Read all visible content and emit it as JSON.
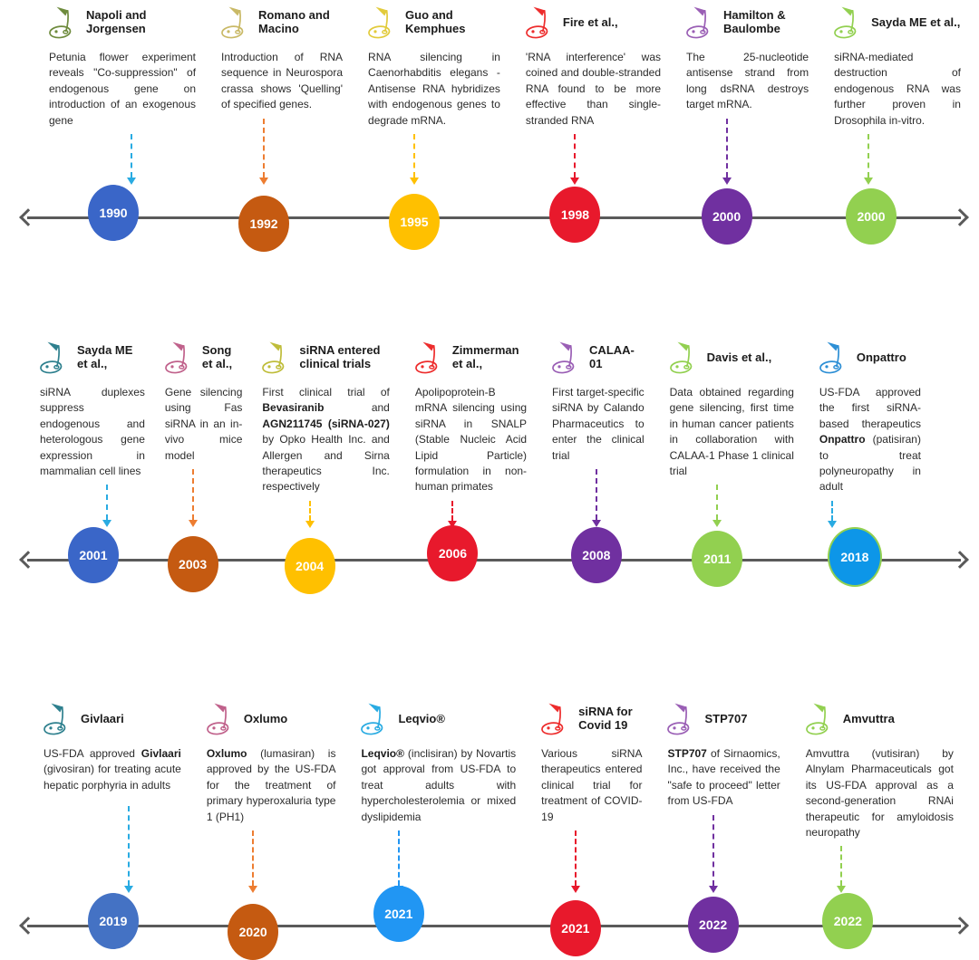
{
  "figure": {
    "title": "Timeline of siRNA / RNAi milestones",
    "axis_color": "#5a5a5a",
    "icon": "golf-flag-icon"
  },
  "rows": [
    {
      "events": [
        {
          "title": "Napoli and Jorgensen",
          "year": "1990",
          "flag_color": "#6E8B3D",
          "arrow_color": "#29ABE2",
          "circle_color": "#3A66C8",
          "desc": [
            "Petunia flower experiment reveals \"Co-suppression\" of endogenous gene on introduction of an exogenous gene"
          ]
        },
        {
          "title": "Romano and Macino",
          "year": "1992",
          "flag_color": "#C9B966",
          "arrow_color": "#ED7D31",
          "circle_color": "#C55A11",
          "desc": [
            "Introduction of RNA sequence in Neurospora crassa shows 'Quelling' of specified genes."
          ]
        },
        {
          "title": "Guo and Kemphues",
          "year": "1995",
          "flag_color": "#E2CB3B",
          "arrow_color": "#FFC000",
          "circle_color": "#FFC000",
          "desc": [
            "RNA silencing in Caenorhabditis elegans - Antisense RNA hybridizes with endogenous genes to degrade mRNA."
          ]
        },
        {
          "title": "Fire et al.,",
          "year": "1998",
          "flag_color": "#ED2C2C",
          "arrow_color": "#E8192C",
          "circle_color": "#E8192C",
          "desc": [
            "'RNA interference' was coined and double-stranded RNA found to be more effective than single-stranded RNA"
          ]
        },
        {
          "title": "Hamilton & Baulombe",
          "year": "2000",
          "flag_color": "#9A5FB5",
          "arrow_color": "#7030A0",
          "circle_color": "#7030A0",
          "desc": [
            "The 25-nucleotide antisense strand from long dsRNA destroys target mRNA."
          ]
        },
        {
          "title": "Sayda ME et al.,",
          "year": "2000",
          "flag_color": "#92D050",
          "arrow_color": "#92D050",
          "circle_color": "#92D050",
          "desc": [
            "siRNA-mediated destruction of endogenous RNA was further proven in Drosophila in-vitro."
          ]
        }
      ]
    },
    {
      "events": [
        {
          "title": "Sayda ME et al.,",
          "year": "2001",
          "flag_color": "#2E808E",
          "arrow_color": "#29ABE2",
          "circle_color": "#3A66C8",
          "desc": [
            "siRNA duplexes suppress endogenous and heterologous gene expression in mammalian cell lines"
          ]
        },
        {
          "title": "Song et al.,",
          "year": "2003",
          "flag_color": "#C0618B",
          "arrow_color": "#ED7D31",
          "circle_color": "#C55A11",
          "desc": [
            "Gene silencing using Fas siRNA in an in-vivo mice model"
          ]
        },
        {
          "title": "siRNA entered clinical trials",
          "year": "2004",
          "flag_color": "#BFBD3A",
          "arrow_color": "#FFC000",
          "circle_color": "#FFC000",
          "desc": [
            "First clinical trial of ",
            {
              "b": "Bevasiranib"
            },
            " and ",
            {
              "b": "AGN211745 (siRNA-027)"
            },
            " by Opko Health Inc. and Allergen and Sirna therapeutics Inc. respectively"
          ]
        },
        {
          "title": "Zimmerman et al.,",
          "year": "2006",
          "flag_color": "#ED2C2C",
          "arrow_color": "#E8192C",
          "circle_color": "#E8192C",
          "desc": [
            "Apolipoprotein-B mRNA silencing using siRNA in SNALP (Stable Nucleic Acid Lipid Particle) formulation in non-human primates"
          ]
        },
        {
          "title": "CALAA-01",
          "year": "2008",
          "flag_color": "#9A5FB5",
          "arrow_color": "#7030A0",
          "circle_color": "#7030A0",
          "desc": [
            "First target-specific siRNA by Calando Pharmaceutics to enter the clinical trial"
          ]
        },
        {
          "title": "Davis et al.,",
          "year": "2011",
          "flag_color": "#92D050",
          "arrow_color": "#92D050",
          "circle_color": "#92D050",
          "desc": [
            "Data obtained regarding gene silencing, first time in human cancer patients in collaboration with CALAA-1 Phase 1 clinical trial"
          ]
        },
        {
          "title": "Onpattro",
          "year": "2018",
          "flag_color": "#2D8FD5",
          "arrow_color": "#29ABE2",
          "circle_color": "#0D96E8",
          "circle_border": "#92D050",
          "desc": [
            "US-FDA approved the first siRNA-based therapeutics ",
            {
              "b": "Onpattro"
            },
            " (patisiran) to treat polyneuropathy in adult"
          ]
        }
      ]
    },
    {
      "events": [
        {
          "title": "Givlaari",
          "year": "2019",
          "flag_color": "#2E808E",
          "arrow_color": "#29ABE2",
          "circle_color": "#4472C4",
          "desc": [
            "US-FDA approved ",
            {
              "b": "Givlaari"
            },
            " (givosiran) for treating acute hepatic porphyria in adults"
          ]
        },
        {
          "title": "Oxlumo",
          "year": "2020",
          "flag_color": "#C0618B",
          "arrow_color": "#ED7D31",
          "circle_color": "#C55A11",
          "desc": [
            {
              "b": "Oxlumo"
            },
            " (lumasiran) is approved by the US-FDA for the treatment of primary hyperoxaluria type 1 (PH1)"
          ]
        },
        {
          "title": "Leqvio®",
          "year": "2021",
          "flag_color": "#29ABE2",
          "arrow_color": "#2196F3",
          "circle_color": "#2196F3",
          "desc": [
            {
              "b": "Leqvio®"
            },
            " (inclisiran) by Novartis got approval from US-FDA to treat adults with hypercholesterolemia or mixed dyslipidemia"
          ]
        },
        {
          "title": "siRNA for Covid 19",
          "year": "2021",
          "flag_color": "#ED2C2C",
          "arrow_color": "#E8192C",
          "circle_color": "#E8192C",
          "desc": [
            "Various siRNA therapeutics entered clinical trial for treatment of COVID-19"
          ]
        },
        {
          "title": "STP707",
          "year": "2022",
          "flag_color": "#9A5FB5",
          "arrow_color": "#7030A0",
          "circle_color": "#7030A0",
          "desc": [
            {
              "b": "STP707"
            },
            " of Sirnaomics, Inc., have received the \"safe to proceed\" letter from US-FDA"
          ]
        },
        {
          "title": "Amvuttra",
          "year": "2022",
          "flag_color": "#92D050",
          "arrow_color": "#92D050",
          "circle_color": "#92D050",
          "desc": [
            "Amvuttra (vutisiran) by Alnylam Pharmaceuticals got its US-FDA approval as a second-generation RNAi therapeutic for amyloidosis neuropathy"
          ]
        }
      ]
    }
  ]
}
